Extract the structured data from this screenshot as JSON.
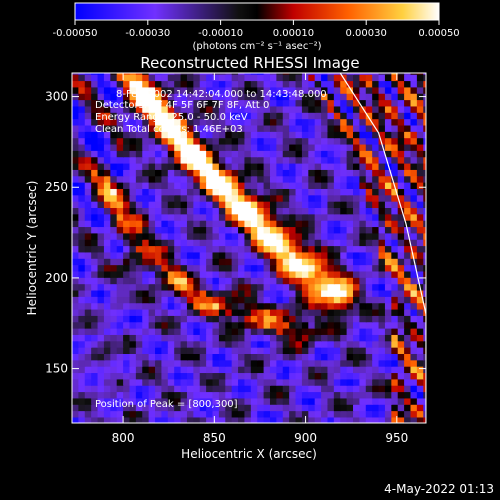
{
  "chart_data": {
    "type": "heatmap",
    "title": "Reconstructed RHESSI Image",
    "xlabel": "Heliocentric X (arcsec)",
    "ylabel": "Heliocentric Y (arcsec)",
    "xlim": [
      772,
      966
    ],
    "ylim": [
      120,
      313
    ],
    "x_ticks": [
      800,
      850,
      900,
      950
    ],
    "y_ticks": [
      150,
      200,
      250,
      300
    ],
    "colorbar": {
      "range": [
        -0.0005,
        0.0005
      ],
      "tick_values": [
        -0.0005,
        -0.0003,
        -0.0001,
        0.0001,
        0.0003,
        0.0005
      ],
      "tick_labels": [
        "-0.00050",
        "-0.00030",
        "-0.00010",
        "0.00010",
        "0.00030",
        "0.00050"
      ],
      "units_label": "(photons cm⁻² s⁻¹ asec⁻²)"
    },
    "annotations": [
      "8-Feb-2002 14:42:04.000 to 14:43:48.000",
      "Detectors: 3F 4F 5F 6F 7F 8F, Att 0",
      "Energy Range: 25.0 - 50.0 keV",
      "Clean    Total counts: 1.46E+03"
    ],
    "peak_label": "Position of Peak = [800,300]",
    "limb_curve": [
      [
        919,
        313
      ],
      [
        940,
        280
      ],
      [
        955,
        230
      ],
      [
        966,
        180
      ],
      [
        966,
        120
      ]
    ],
    "bright_ridge": [
      [
        808,
        306
      ],
      [
        838,
        268
      ],
      [
        868,
        238
      ],
      [
        895,
        210
      ],
      [
        918,
        190
      ]
    ],
    "secondary_ridge": [
      [
        790,
        255
      ],
      [
        810,
        215
      ],
      [
        840,
        190
      ],
      [
        870,
        180
      ],
      [
        900,
        172
      ]
    ],
    "grid": false
  },
  "timestamp": "4-May-2022 01:13"
}
